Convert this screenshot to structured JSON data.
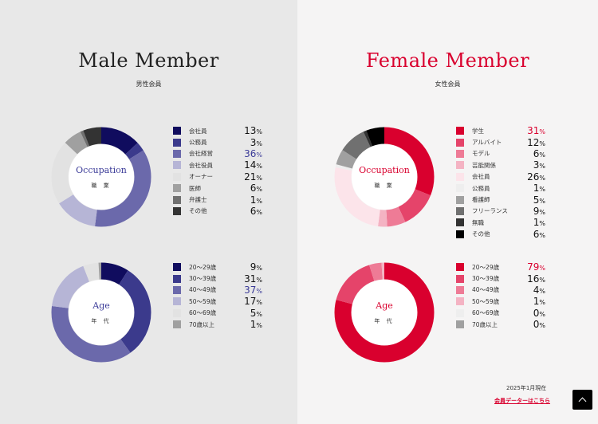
{
  "male": {
    "title": "Male Member",
    "subtitle": "男性会員",
    "accent": "#3b3b98",
    "occupation": {
      "label": "Occupation",
      "sub": "職 業",
      "items": [
        {
          "name": "会社員",
          "value": 13,
          "color": "#100c5e"
        },
        {
          "name": "公務員",
          "value": 3,
          "color": "#3b3a8c"
        },
        {
          "name": "会社経営",
          "value": 36,
          "color": "#6b69ab",
          "highlight": true
        },
        {
          "name": "会社役員",
          "value": 14,
          "color": "#b6b5d6"
        },
        {
          "name": "オーナー",
          "value": 21,
          "color": "#e2e2e2"
        },
        {
          "name": "医師",
          "value": 6,
          "color": "#a0a0a0"
        },
        {
          "name": "弁護士",
          "value": 1,
          "color": "#707070"
        },
        {
          "name": "その他",
          "value": 6,
          "color": "#333333"
        }
      ]
    },
    "age": {
      "label": "Age",
      "sub": "年 代",
      "items": [
        {
          "name": "20〜29歳",
          "value": 9,
          "color": "#100c5e"
        },
        {
          "name": "30〜39歳",
          "value": 31,
          "color": "#3b3a8c"
        },
        {
          "name": "40〜49歳",
          "value": 37,
          "color": "#6b69ab",
          "highlight": true
        },
        {
          "name": "50〜59歳",
          "value": 17,
          "color": "#b6b5d6"
        },
        {
          "name": "60〜69歳",
          "value": 5,
          "color": "#e2e2e2"
        },
        {
          "name": "70歳以上",
          "value": 1,
          "color": "#a0a0a0"
        }
      ]
    }
  },
  "female": {
    "title": "Female Member",
    "subtitle": "女性会員",
    "accent": "#d9002e",
    "occupation": {
      "label": "Occupation",
      "sub": "職 業",
      "items": [
        {
          "name": "学生",
          "value": 31,
          "color": "#d9002e",
          "highlight": true
        },
        {
          "name": "アルバイト",
          "value": 12,
          "color": "#e5446a"
        },
        {
          "name": "モデル",
          "value": 6,
          "color": "#ee7b96"
        },
        {
          "name": "芸能関係",
          "value": 3,
          "color": "#f4b3c3"
        },
        {
          "name": "会社員",
          "value": 26,
          "color": "#fce4ea"
        },
        {
          "name": "公務員",
          "value": 1,
          "color": "#eeeeee"
        },
        {
          "name": "看護師",
          "value": 5,
          "color": "#a0a0a0"
        },
        {
          "name": "フリーランス",
          "value": 9,
          "color": "#707070"
        },
        {
          "name": "無職",
          "value": 1,
          "color": "#333333"
        },
        {
          "name": "その他",
          "value": 6,
          "color": "#000000"
        }
      ]
    },
    "age": {
      "label": "Age",
      "sub": "年 代",
      "items": [
        {
          "name": "20〜29歳",
          "value": 79,
          "color": "#d9002e",
          "highlight": true
        },
        {
          "name": "30〜39歳",
          "value": 16,
          "color": "#e5446a"
        },
        {
          "name": "40〜49歳",
          "value": 4,
          "color": "#ee7b96"
        },
        {
          "name": "50〜59歳",
          "value": 1,
          "color": "#f4b3c3"
        },
        {
          "name": "60〜69歳",
          "value": 0,
          "color": "#eeeeee"
        },
        {
          "name": "70歳以上",
          "value": 0,
          "color": "#a0a0a0"
        }
      ]
    }
  },
  "footer": {
    "date": "2025年1月現在",
    "link": "会員データーはこちら"
  },
  "percent_sign": "%"
}
